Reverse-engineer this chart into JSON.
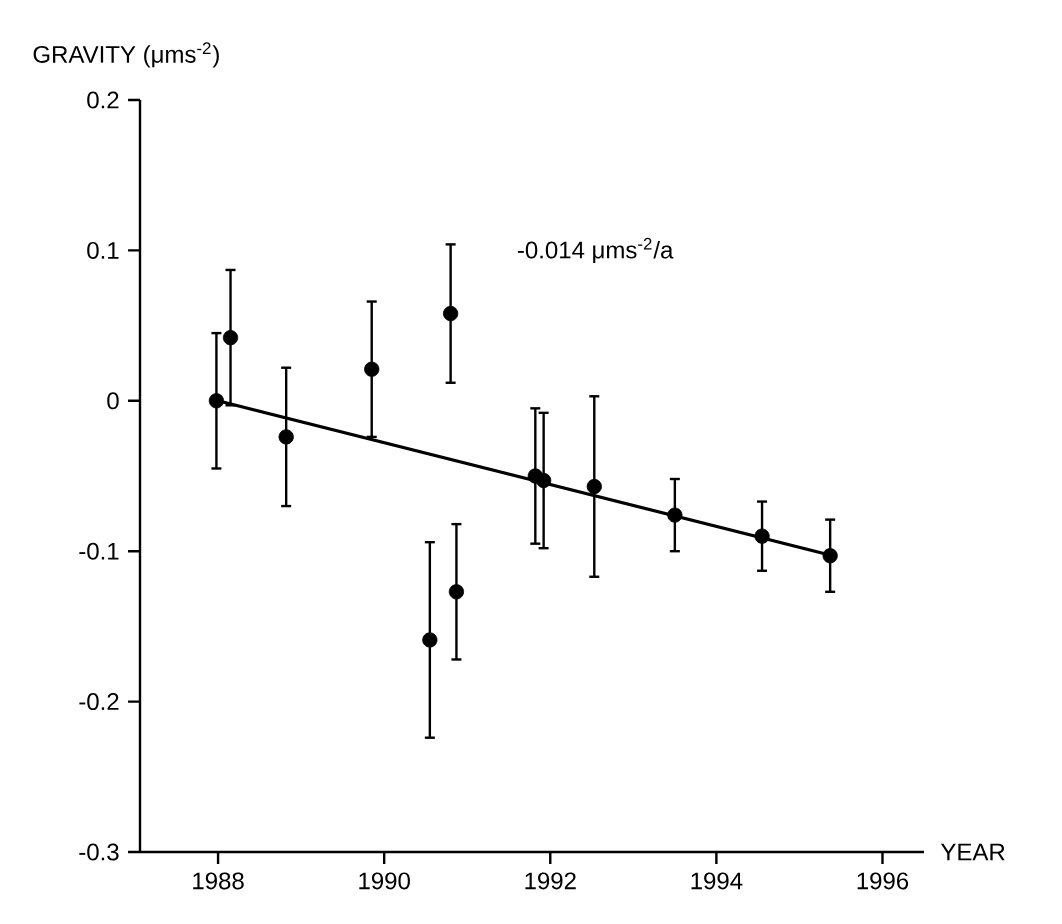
{
  "chart_data": {
    "type": "scatter",
    "ylabel": "GRAVITY (μms$^{-2}$)",
    "xlabel": "YEAR",
    "annotations": [
      "-0.014 μms$^{-2}$/a"
    ],
    "xlim": [
      1987.06,
      1996.5
    ],
    "ylim": [
      -0.3,
      0.2
    ],
    "xticks": [
      1988,
      1990,
      1992,
      1994,
      1996
    ],
    "yticks": [
      -0.3,
      -0.2,
      -0.1,
      0,
      0.1,
      0.2
    ],
    "marker": "circle",
    "grid": false,
    "series": [
      {
        "color": "#000000",
        "x": [
          1987.98,
          1988.15,
          1988.82,
          1989.85,
          1990.55,
          1990.8,
          1990.87,
          1991.82,
          1991.92,
          1992.53,
          1993.5,
          1994.55,
          1995.37
        ],
        "values": [
          0,
          0.042,
          -0.024,
          0.021,
          -0.159,
          0.058,
          -0.127,
          -0.05,
          -0.053,
          -0.057,
          -0.076,
          -0.09,
          -0.103
        ],
        "errors": [
          0.045,
          0.045,
          0.046,
          0.045,
          0.065,
          0.046,
          0.045,
          0.045,
          0.045,
          0.06,
          0.024,
          0.023,
          0.024
        ]
      },
      {
        "type": "line",
        "color": "#000000",
        "marker": "none",
        "line_style": "solid",
        "x": [
          1988,
          1995.4
        ],
        "values": [
          0,
          -0.103
        ]
      }
    ]
  }
}
